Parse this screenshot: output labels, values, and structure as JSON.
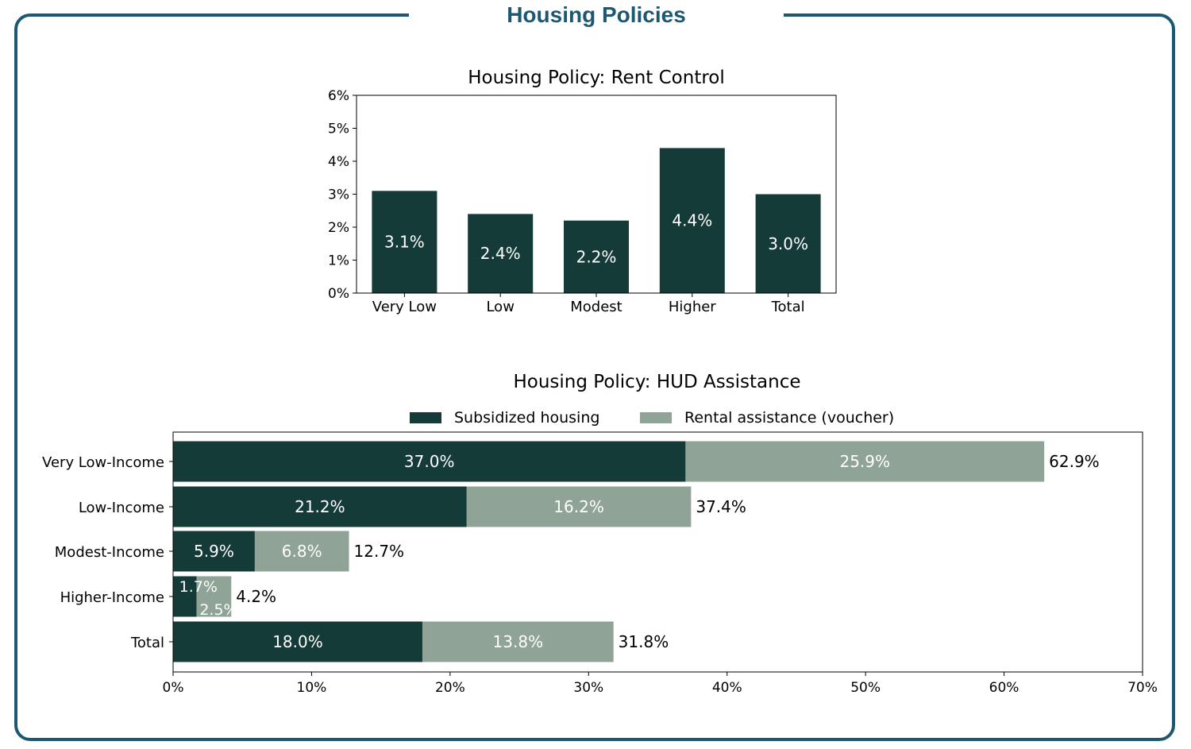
{
  "page": {
    "title": "Housing Policies",
    "colors": {
      "frame": "#1d5873",
      "dark": "#143b38",
      "light": "#8fa497"
    }
  },
  "chart_data": [
    {
      "type": "bar",
      "title": "Housing Policy: Rent Control",
      "categories": [
        "Very Low",
        "Low",
        "Modest",
        "Higher",
        "Total"
      ],
      "values": [
        3.1,
        2.4,
        2.2,
        4.4,
        3.0
      ],
      "data_labels": [
        "3.1%",
        "2.4%",
        "2.2%",
        "4.4%",
        "3.0%"
      ],
      "ylim": [
        0,
        6
      ],
      "yticks": [
        0,
        1,
        2,
        3,
        4,
        5,
        6
      ],
      "ytick_labels": [
        "0%",
        "1%",
        "2%",
        "3%",
        "4%",
        "5%",
        "6%"
      ],
      "color": "#143b38",
      "grid": false
    },
    {
      "type": "bar",
      "orientation": "horizontal",
      "stacked": true,
      "title": "Housing Policy: HUD Assistance",
      "categories": [
        "Very Low-Income",
        "Low-Income",
        "Modest-Income",
        "Higher-Income",
        "Total"
      ],
      "series": [
        {
          "name": "Subsidized housing",
          "values": [
            37.0,
            21.2,
            5.9,
            1.7,
            18.0
          ],
          "labels": [
            "37.0%",
            "21.2%",
            "5.9%",
            "1.7%",
            "18.0%"
          ],
          "color": "#143b38"
        },
        {
          "name": "Rental assistance (voucher)",
          "values": [
            25.9,
            16.2,
            6.8,
            2.5,
            13.8
          ],
          "labels": [
            "25.9%",
            "16.2%",
            "6.8%",
            "2.5%",
            "13.8%"
          ],
          "color": "#8fa497"
        }
      ],
      "totals": [
        62.9,
        37.4,
        12.7,
        4.2,
        31.8
      ],
      "total_labels": [
        "62.9%",
        "37.4%",
        "12.7%",
        "4.2%",
        "31.8%"
      ],
      "xlim": [
        0,
        70
      ],
      "xticks": [
        0,
        10,
        20,
        30,
        40,
        50,
        60,
        70
      ],
      "xtick_labels": [
        "0%",
        "10%",
        "20%",
        "30%",
        "40%",
        "50%",
        "60%",
        "70%"
      ],
      "legend": "top-center",
      "grid": false
    }
  ]
}
